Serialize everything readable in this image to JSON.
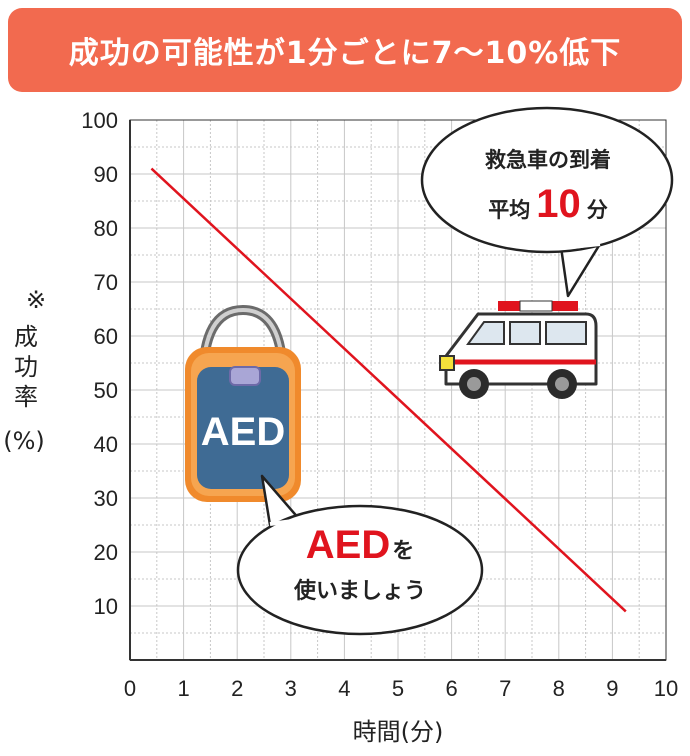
{
  "colors": {
    "banner": "#f26a4f",
    "line": "#e0141e",
    "grid": "#bdbdbd",
    "aed_body": "#3f6b94",
    "aed_frame": "#f08a2c",
    "highlight": "#e0141e"
  },
  "banner": {
    "title": "成功の可能性が1分ごとに7～10%低下"
  },
  "chart_data": {
    "type": "line",
    "title": "成功の可能性が1分ごとに7～10%低下",
    "xlabel": "時間(分)",
    "ylabel_mark": "※",
    "ylabel": "成功率",
    "ylabel_unit": "(%)",
    "xlim": [
      0,
      10
    ],
    "ylim": [
      0,
      100
    ],
    "xticks": [
      0,
      1,
      2,
      3,
      4,
      5,
      6,
      7,
      8,
      9,
      10
    ],
    "yticks": [
      10,
      20,
      30,
      40,
      50,
      60,
      70,
      80,
      90,
      100
    ],
    "grid": true,
    "series": [
      {
        "x": [
          0.4,
          9.25
        ],
        "y": [
          91,
          9
        ]
      }
    ]
  },
  "callouts": {
    "ambulance": {
      "line1": "救急車の到着",
      "prefix": "平均",
      "value": "10",
      "suffix": "分"
    },
    "aed": {
      "highlight": "AED",
      "particle": "を",
      "line2": "使いましょう"
    }
  },
  "aed_device": {
    "label": "AED"
  },
  "icons": {
    "ambulance": "ambulance-icon",
    "aed": "aed-device-icon"
  }
}
